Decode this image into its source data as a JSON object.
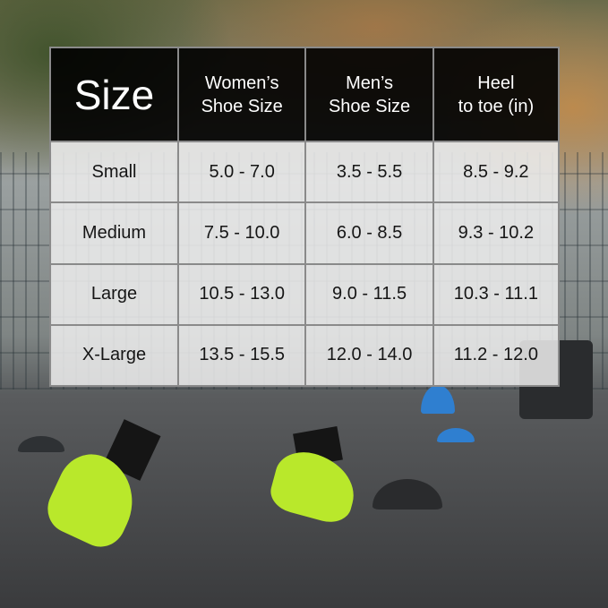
{
  "chart_data": {
    "type": "table",
    "columns": [
      "Size",
      "Women’s Shoe Size",
      "Men’s Shoe Size",
      "Heel to toe (in)"
    ],
    "column_lines": [
      [
        "Size"
      ],
      [
        "Women’s",
        "Shoe Size"
      ],
      [
        "Men’s",
        "Shoe Size"
      ],
      [
        "Heel",
        "to toe (in)"
      ]
    ],
    "rows": [
      [
        "Small",
        "5.0 - 7.0",
        "3.5 - 5.5",
        "8.5 - 9.2"
      ],
      [
        "Medium",
        "7.5 - 10.0",
        "6.0 - 8.5",
        "9.3 - 10.2"
      ],
      [
        "Large",
        "10.5 - 13.0",
        "9.0 - 11.5",
        "10.3 - 11.1"
      ],
      [
        "X-Large",
        "13.5 - 15.5",
        "12.0 - 14.0",
        "11.2 - 12.0"
      ]
    ]
  },
  "colors": {
    "header_bg": "#000000",
    "header_text": "#ffffff",
    "body_bg": "#eeeeee",
    "border": "#8a8a8a",
    "shoe": "#b9e82b"
  }
}
